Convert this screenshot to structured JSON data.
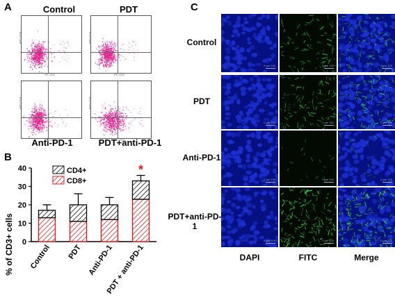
{
  "panel_a": {
    "letter": "A",
    "plots": [
      {
        "title": "Control",
        "ylabel": "APC-CD4",
        "xlabel": "PE-CD8"
      },
      {
        "title": "PDT",
        "ylabel": "APC-CD4",
        "xlabel": "PE-CD8"
      },
      {
        "title": "Anti-PD-1",
        "ylabel": "APC-CD4",
        "xlabel": "PE-CD8"
      },
      {
        "title": "PDT+anti-PD-1",
        "ylabel": "APC-CD4",
        "xlabel": "PE-CD8"
      }
    ]
  },
  "panel_b": {
    "letter": "B",
    "ylabel": "% of CD3+ cells",
    "legend": [
      "CD4+",
      "CD8+"
    ],
    "significance": "*"
  },
  "chart_data": {
    "type": "bar",
    "stacked": true,
    "categories": [
      "Control",
      "PDT",
      "Anti-PD-1",
      "PDT + anti-PD-1"
    ],
    "series": [
      {
        "name": "CD8+",
        "values": [
          13,
          11,
          12,
          23
        ],
        "color": "#e02020"
      },
      {
        "name": "CD4+",
        "values": [
          4,
          9,
          8,
          10
        ],
        "color": "#111111"
      }
    ],
    "totals": [
      17,
      20,
      20,
      33
    ],
    "errors": [
      3,
      6,
      4,
      3
    ],
    "ylabel": "% of CD3+ cells",
    "ylim": [
      0,
      40
    ],
    "yticks": [
      "0",
      "10",
      "20",
      "30",
      "40"
    ],
    "legend_position": "top"
  },
  "panel_c": {
    "letter": "C",
    "rows": [
      "Control",
      "PDT",
      "Anti-PD-1",
      "PDT+anti-PD-1"
    ],
    "columns": [
      "DAPI",
      "FITC",
      "Merge"
    ],
    "scale_text": "0 μm 100",
    "fitc_intensity": [
      0.55,
      0.6,
      0.1,
      0.95
    ]
  },
  "colors": {
    "flow_dots": "#e0208c",
    "dapi": "#1b2fd0",
    "fitc": "#2fd040",
    "cd8": "#e02020"
  }
}
